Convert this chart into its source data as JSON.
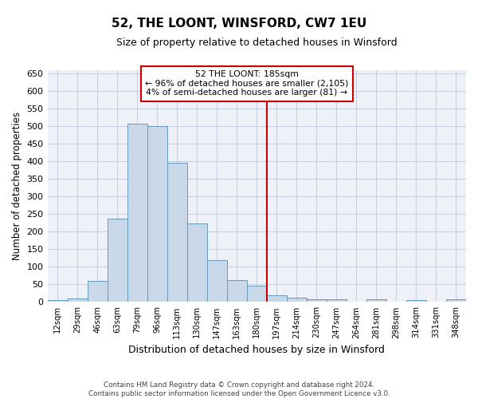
{
  "title": "52, THE LOONT, WINSFORD, CW7 1EU",
  "subtitle": "Size of property relative to detached houses in Winsford",
  "xlabel": "Distribution of detached houses by size in Winsford",
  "ylabel": "Number of detached properties",
  "bin_labels": [
    "12sqm",
    "29sqm",
    "46sqm",
    "63sqm",
    "79sqm",
    "96sqm",
    "113sqm",
    "130sqm",
    "147sqm",
    "163sqm",
    "180sqm",
    "197sqm",
    "214sqm",
    "230sqm",
    "247sqm",
    "264sqm",
    "281sqm",
    "298sqm",
    "314sqm",
    "331sqm",
    "348sqm"
  ],
  "bar_heights": [
    5,
    10,
    60,
    237,
    507,
    500,
    397,
    223,
    120,
    62,
    47,
    20,
    12,
    8,
    7,
    0,
    8,
    0,
    5,
    0,
    7
  ],
  "bar_color": "#c8d8e8",
  "bar_edge_color": "#6699bb",
  "grid_color": "#c8d0e0",
  "bg_color": "#eef2f8",
  "red_line_x": 10.5,
  "annotation_title": "52 THE LOONT: 185sqm",
  "annotation_line1": "← 96% of detached houses are smaller (2,105)",
  "annotation_line2": "4% of semi-detached houses are larger (81) →",
  "annotation_box_color": "#ffffff",
  "annotation_box_edge": "#cc0000",
  "red_line_color": "#cc0000",
  "footer1": "Contains HM Land Registry data © Crown copyright and database right 2024.",
  "footer2": "Contains public sector information licensed under the Open Government Licence v3.0.",
  "ylim": [
    0,
    660
  ],
  "yticks": [
    0,
    50,
    100,
    150,
    200,
    250,
    300,
    350,
    400,
    450,
    500,
    550,
    600,
    650
  ]
}
